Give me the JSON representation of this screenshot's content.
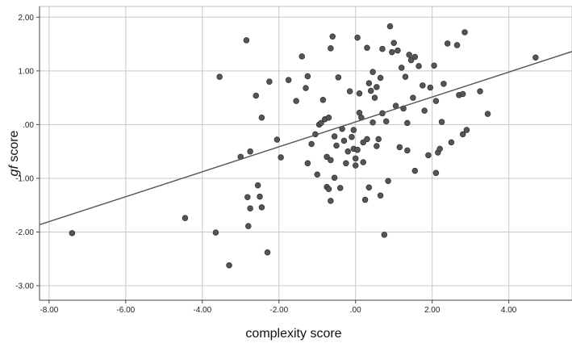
{
  "chart_data": {
    "type": "scatter",
    "title": "",
    "xlabel": "complexity score",
    "ylabel_italic": "gf",
    "ylabel_rest": " score",
    "xlim": [
      -8.25,
      5.65
    ],
    "ylim": [
      -3.27,
      2.2
    ],
    "x_ticks": [
      -8,
      -6,
      -4,
      -2,
      0,
      2,
      4
    ],
    "x_tick_labels": [
      "-8.00",
      "-6.00",
      "-4.00",
      "-2.00",
      ".00",
      "2.00",
      "4.00"
    ],
    "y_ticks": [
      2,
      1,
      0,
      -1,
      -2,
      -3
    ],
    "y_tick_labels": [
      "2.00",
      "1.00",
      ".00",
      "-1.00",
      "-2.00",
      "-3.00"
    ],
    "grid": true,
    "legend": "none",
    "point_color": "#555555",
    "line_color": "#555555",
    "fit_line": {
      "intercept": 0.05,
      "slope": 0.232
    },
    "points": [
      {
        "x": -7.4,
        "y": -2.02
      },
      {
        "x": -4.45,
        "y": -1.74
      },
      {
        "x": -3.65,
        "y": -2.01
      },
      {
        "x": -3.55,
        "y": 0.89
      },
      {
        "x": -3.3,
        "y": -2.62
      },
      {
        "x": -3.0,
        "y": -0.6
      },
      {
        "x": -2.85,
        "y": 1.57
      },
      {
        "x": -2.82,
        "y": -1.35
      },
      {
        "x": -2.75,
        "y": -0.5
      },
      {
        "x": -2.8,
        "y": -1.89
      },
      {
        "x": -2.75,
        "y": -1.56
      },
      {
        "x": -2.6,
        "y": 0.54
      },
      {
        "x": -2.55,
        "y": -1.13
      },
      {
        "x": -2.5,
        "y": -1.34
      },
      {
        "x": -2.45,
        "y": -1.54
      },
      {
        "x": -2.45,
        "y": 0.13
      },
      {
        "x": -2.3,
        "y": -2.38
      },
      {
        "x": -2.25,
        "y": 0.8
      },
      {
        "x": -2.05,
        "y": -0.28
      },
      {
        "x": -1.95,
        "y": -0.61
      },
      {
        "x": -1.75,
        "y": 0.83
      },
      {
        "x": -1.55,
        "y": 0.44
      },
      {
        "x": -1.4,
        "y": 1.27
      },
      {
        "x": -1.3,
        "y": 0.68
      },
      {
        "x": -1.25,
        "y": -0.72
      },
      {
        "x": -1.25,
        "y": 0.9
      },
      {
        "x": -1.15,
        "y": -0.36
      },
      {
        "x": -1.05,
        "y": -0.18
      },
      {
        "x": -1.0,
        "y": -0.93
      },
      {
        "x": -0.95,
        "y": 0.0
      },
      {
        "x": -0.9,
        "y": 0.03
      },
      {
        "x": -0.85,
        "y": 0.46
      },
      {
        "x": -0.8,
        "y": 0.1
      },
      {
        "x": -0.75,
        "y": -0.6
      },
      {
        "x": -0.75,
        "y": -1.16
      },
      {
        "x": -0.7,
        "y": 0.13
      },
      {
        "x": -0.7,
        "y": -1.2
      },
      {
        "x": -0.65,
        "y": 1.42
      },
      {
        "x": -0.65,
        "y": -0.66
      },
      {
        "x": -0.65,
        "y": -1.42
      },
      {
        "x": -0.6,
        "y": 1.64
      },
      {
        "x": -0.55,
        "y": -0.22
      },
      {
        "x": -0.55,
        "y": -0.99
      },
      {
        "x": -0.5,
        "y": -0.39
      },
      {
        "x": -0.45,
        "y": 0.88
      },
      {
        "x": -0.4,
        "y": -1.18
      },
      {
        "x": -0.35,
        "y": -0.08
      },
      {
        "x": -0.3,
        "y": -0.3
      },
      {
        "x": -0.25,
        "y": -0.72
      },
      {
        "x": -0.2,
        "y": -0.5
      },
      {
        "x": -0.15,
        "y": 0.62
      },
      {
        "x": -0.1,
        "y": -0.23
      },
      {
        "x": -0.05,
        "y": -0.45
      },
      {
        "x": -0.05,
        "y": -0.1
      },
      {
        "x": 0.0,
        "y": -0.63
      },
      {
        "x": 0.0,
        "y": -0.76
      },
      {
        "x": 0.05,
        "y": 1.62
      },
      {
        "x": 0.05,
        "y": -0.47
      },
      {
        "x": 0.1,
        "y": 0.22
      },
      {
        "x": 0.1,
        "y": 0.58
      },
      {
        "x": 0.15,
        "y": 0.13
      },
      {
        "x": 0.2,
        "y": -0.7
      },
      {
        "x": 0.2,
        "y": -0.33
      },
      {
        "x": 0.25,
        "y": -1.4
      },
      {
        "x": 0.3,
        "y": 1.43
      },
      {
        "x": 0.3,
        "y": -0.27
      },
      {
        "x": 0.35,
        "y": 0.77
      },
      {
        "x": 0.35,
        "y": -1.17
      },
      {
        "x": 0.4,
        "y": 0.63
      },
      {
        "x": 0.45,
        "y": 0.98
      },
      {
        "x": 0.45,
        "y": 0.04
      },
      {
        "x": 0.5,
        "y": 0.5
      },
      {
        "x": 0.55,
        "y": 0.7
      },
      {
        "x": 0.55,
        "y": -0.4
      },
      {
        "x": 0.6,
        "y": -0.27
      },
      {
        "x": 0.65,
        "y": 0.87
      },
      {
        "x": 0.65,
        "y": -1.32
      },
      {
        "x": 0.7,
        "y": 0.21
      },
      {
        "x": 0.7,
        "y": 1.41
      },
      {
        "x": 0.75,
        "y": -2.05
      },
      {
        "x": 0.8,
        "y": 0.06
      },
      {
        "x": 0.85,
        "y": -1.05
      },
      {
        "x": 0.9,
        "y": 1.83
      },
      {
        "x": 0.95,
        "y": 1.35
      },
      {
        "x": 1.0,
        "y": 1.52
      },
      {
        "x": 1.05,
        "y": 0.35
      },
      {
        "x": 1.1,
        "y": 1.38
      },
      {
        "x": 1.15,
        "y": -0.42
      },
      {
        "x": 1.2,
        "y": 1.06
      },
      {
        "x": 1.25,
        "y": 0.3
      },
      {
        "x": 1.3,
        "y": 0.89
      },
      {
        "x": 1.35,
        "y": -0.48
      },
      {
        "x": 1.35,
        "y": 0.03
      },
      {
        "x": 1.4,
        "y": 1.3
      },
      {
        "x": 1.45,
        "y": 1.2
      },
      {
        "x": 1.5,
        "y": 0.5
      },
      {
        "x": 1.55,
        "y": 1.26
      },
      {
        "x": 1.55,
        "y": -0.86
      },
      {
        "x": 1.65,
        "y": 1.09
      },
      {
        "x": 1.75,
        "y": 0.73
      },
      {
        "x": 1.8,
        "y": 0.26
      },
      {
        "x": 1.9,
        "y": -0.57
      },
      {
        "x": 1.95,
        "y": 0.69
      },
      {
        "x": 2.05,
        "y": 1.1
      },
      {
        "x": 2.1,
        "y": 0.44
      },
      {
        "x": 2.1,
        "y": -0.9
      },
      {
        "x": 2.15,
        "y": -0.52
      },
      {
        "x": 2.2,
        "y": -0.45
      },
      {
        "x": 2.25,
        "y": 0.05
      },
      {
        "x": 2.3,
        "y": 0.76
      },
      {
        "x": 2.4,
        "y": 1.51
      },
      {
        "x": 2.5,
        "y": -0.33
      },
      {
        "x": 2.65,
        "y": 1.48
      },
      {
        "x": 2.7,
        "y": 0.55
      },
      {
        "x": 2.8,
        "y": 0.57
      },
      {
        "x": 2.8,
        "y": -0.18
      },
      {
        "x": 2.85,
        "y": 1.72
      },
      {
        "x": 2.9,
        "y": -0.1
      },
      {
        "x": 3.25,
        "y": 0.62
      },
      {
        "x": 3.45,
        "y": 0.2
      },
      {
        "x": 4.7,
        "y": 1.25
      }
    ]
  }
}
